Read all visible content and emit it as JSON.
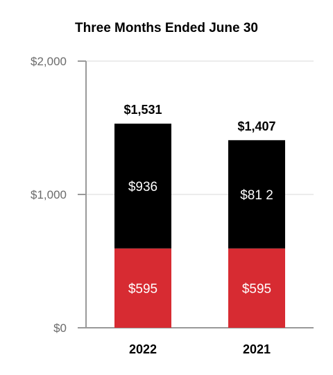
{
  "chart_data": {
    "type": "bar",
    "stacked": true,
    "title": "Three Months Ended June 30",
    "categories": [
      "2022",
      "2021"
    ],
    "series": [
      {
        "color": "#d72b32",
        "values": [
          595,
          595
        ],
        "labels": [
          "$595",
          "$595"
        ]
      },
      {
        "color": "#000000",
        "values": [
          936,
          812
        ],
        "labels": [
          "$936",
          "$81 2"
        ]
      }
    ],
    "totals": [
      "$1,531",
      "$1,407"
    ],
    "ylim": [
      0,
      2000
    ],
    "yticks": [
      {
        "value": 0,
        "label": "$0"
      },
      {
        "value": 1000,
        "label": "$1,000"
      },
      {
        "value": 2000,
        "label": "$2,000"
      }
    ],
    "grid": true
  }
}
